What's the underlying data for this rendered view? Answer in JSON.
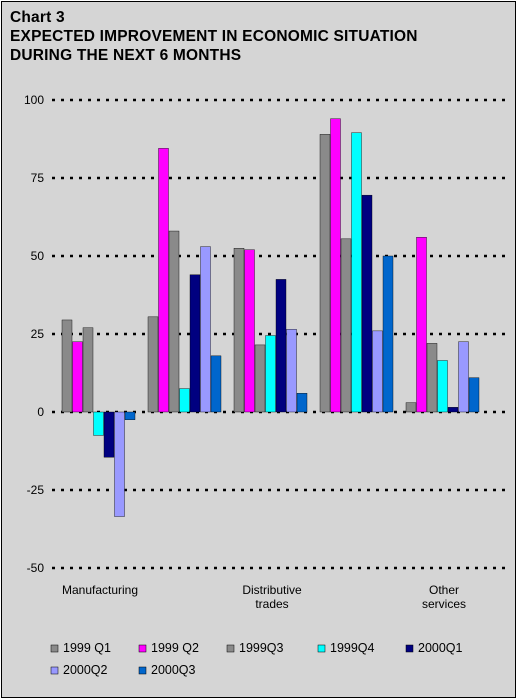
{
  "chart_data": {
    "type": "bar",
    "title_lines": [
      "Chart 3",
      "EXPECTED IMPROVEMENT IN ECONOMIC SITUATION",
      "DURING THE NEXT 6 MONTHS"
    ],
    "categories": [
      [
        "Manufacturing"
      ],
      [],
      [
        "Distributive",
        "trades"
      ],
      [],
      [
        "Other",
        "services"
      ]
    ],
    "series": [
      {
        "name": "1999 Q1",
        "color": "#8a8a8a",
        "values": [
          29.5,
          30.5,
          52.5,
          89,
          3
        ]
      },
      {
        "name": "1999 Q2",
        "color": "#ff00ff",
        "values": [
          22.5,
          84.5,
          52,
          94,
          56
        ]
      },
      {
        "name": "1999Q3",
        "color": "#8a8a8a",
        "values": [
          27,
          58,
          21.5,
          55.5,
          22
        ]
      },
      {
        "name": "1999Q4",
        "color": "#00ffff",
        "values": [
          -7.5,
          7.5,
          24.5,
          89.5,
          16.5
        ]
      },
      {
        "name": "2000Q1",
        "color": "#000080",
        "values": [
          -14.5,
          44,
          42.5,
          69.5,
          1.5
        ]
      },
      {
        "name": "2000Q2",
        "color": "#9999ff",
        "values": [
          -33.5,
          53,
          26.5,
          26,
          22.5
        ]
      },
      {
        "name": "2000Q3",
        "color": "#0066cc",
        "values": [
          -2.5,
          18,
          6,
          50,
          11
        ]
      }
    ],
    "yticks": [
      100,
      75,
      50,
      25,
      0,
      -25,
      -50
    ],
    "ylim": [
      -50,
      100
    ],
    "grid": "dotted",
    "legend_position": "bottom"
  }
}
